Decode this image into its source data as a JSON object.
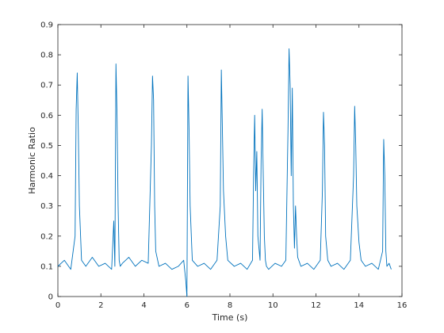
{
  "chart_data": {
    "type": "line",
    "title": "",
    "xlabel": "Time (s)",
    "ylabel": "Harmonic Ratio",
    "xlim": [
      0,
      16
    ],
    "ylim": [
      0,
      0.9
    ],
    "x_ticks": [
      0,
      2,
      4,
      6,
      8,
      10,
      12,
      14,
      16
    ],
    "x_tick_labels": [
      "0",
      "2",
      "4",
      "6",
      "8",
      "10",
      "12",
      "14",
      "16"
    ],
    "y_ticks": [
      0,
      0.1,
      0.2,
      0.3,
      0.4,
      0.5,
      0.6,
      0.7,
      0.8,
      0.9
    ],
    "y_tick_labels": [
      "0",
      "0.1",
      "0.2",
      "0.3",
      "0.4",
      "0.5",
      "0.6",
      "0.7",
      "0.8",
      "0.9"
    ],
    "grid": false,
    "line_color": "#0072BD",
    "series": [
      {
        "x": [
          0.0,
          0.3,
          0.6,
          0.8,
          0.85,
          0.9,
          0.95,
          1.0,
          1.1,
          1.3,
          1.6,
          1.9,
          2.2,
          2.5,
          2.6,
          2.65,
          2.7,
          2.75,
          2.8,
          2.85,
          2.9,
          3.0,
          3.3,
          3.6,
          3.9,
          4.2,
          4.35,
          4.4,
          4.45,
          4.5,
          4.55,
          4.7,
          5.0,
          5.3,
          5.6,
          5.85,
          5.95,
          6.0,
          6.05,
          6.1,
          6.15,
          6.25,
          6.5,
          6.8,
          7.1,
          7.4,
          7.55,
          7.6,
          7.65,
          7.7,
          7.8,
          7.9,
          8.2,
          8.5,
          8.8,
          9.05,
          9.1,
          9.15,
          9.2,
          9.25,
          9.3,
          9.4,
          9.45,
          9.5,
          9.55,
          9.6,
          9.65,
          9.7,
          9.8,
          10.1,
          10.4,
          10.6,
          10.7,
          10.75,
          10.8,
          10.85,
          10.9,
          10.95,
          11.0,
          11.05,
          11.1,
          11.15,
          11.3,
          11.6,
          11.9,
          12.2,
          12.3,
          12.35,
          12.4,
          12.45,
          12.55,
          12.7,
          13.0,
          13.3,
          13.6,
          13.75,
          13.8,
          13.85,
          13.9,
          14.0,
          14.1,
          14.3,
          14.6,
          14.9,
          15.1,
          15.15,
          15.2,
          15.25,
          15.3,
          15.4,
          15.5
        ],
        "y": [
          0.1,
          0.12,
          0.09,
          0.2,
          0.62,
          0.74,
          0.55,
          0.3,
          0.12,
          0.1,
          0.13,
          0.1,
          0.11,
          0.09,
          0.25,
          0.1,
          0.77,
          0.6,
          0.3,
          0.12,
          0.1,
          0.11,
          0.13,
          0.1,
          0.12,
          0.11,
          0.5,
          0.73,
          0.65,
          0.3,
          0.15,
          0.1,
          0.11,
          0.09,
          0.1,
          0.12,
          0.05,
          0.0,
          0.73,
          0.55,
          0.3,
          0.12,
          0.1,
          0.11,
          0.09,
          0.12,
          0.3,
          0.75,
          0.55,
          0.35,
          0.2,
          0.12,
          0.1,
          0.11,
          0.09,
          0.12,
          0.4,
          0.6,
          0.35,
          0.48,
          0.2,
          0.12,
          0.45,
          0.62,
          0.4,
          0.2,
          0.12,
          0.1,
          0.09,
          0.11,
          0.1,
          0.12,
          0.55,
          0.82,
          0.7,
          0.4,
          0.69,
          0.3,
          0.16,
          0.3,
          0.2,
          0.13,
          0.1,
          0.11,
          0.09,
          0.12,
          0.35,
          0.61,
          0.5,
          0.2,
          0.12,
          0.1,
          0.11,
          0.09,
          0.12,
          0.4,
          0.63,
          0.5,
          0.3,
          0.18,
          0.12,
          0.1,
          0.11,
          0.09,
          0.15,
          0.52,
          0.4,
          0.15,
          0.1,
          0.11,
          0.09
        ]
      }
    ]
  }
}
